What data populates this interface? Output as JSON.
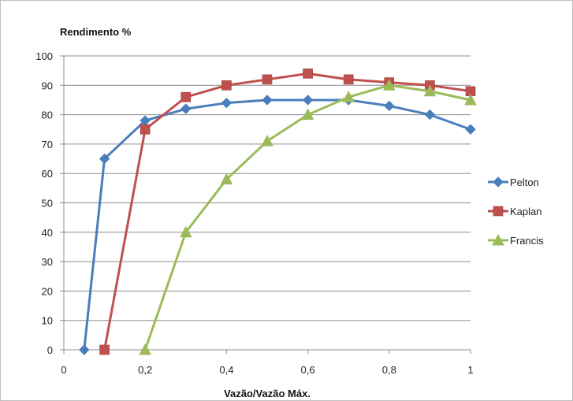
{
  "chart_data": {
    "type": "line",
    "ylabel": "Rendimento %",
    "xlabel": "Vazão/Vazão Máx.",
    "xlim": [
      0,
      1
    ],
    "ylim": [
      0,
      100
    ],
    "x_ticks": [
      {
        "value": 0,
        "label": "0"
      },
      {
        "value": 0.2,
        "label": "0,2"
      },
      {
        "value": 0.4,
        "label": "0,4"
      },
      {
        "value": 0.6,
        "label": "0,6"
      },
      {
        "value": 0.8,
        "label": "0,8"
      },
      {
        "value": 1,
        "label": "1"
      }
    ],
    "y_ticks": [
      {
        "value": 0,
        "label": "0"
      },
      {
        "value": 10,
        "label": "10"
      },
      {
        "value": 20,
        "label": "20"
      },
      {
        "value": 30,
        "label": "30"
      },
      {
        "value": 40,
        "label": "40"
      },
      {
        "value": 50,
        "label": "50"
      },
      {
        "value": 60,
        "label": "60"
      },
      {
        "value": 70,
        "label": "70"
      },
      {
        "value": 80,
        "label": "80"
      },
      {
        "value": 90,
        "label": "90"
      },
      {
        "value": 100,
        "label": "100"
      }
    ],
    "grid": "horizontal",
    "legend_position": "right",
    "series": [
      {
        "name": "Pelton",
        "color": "#4a7ebb",
        "marker": "diamond",
        "x": [
          0.05,
          0.1,
          0.2,
          0.3,
          0.4,
          0.5,
          0.6,
          0.7,
          0.8,
          0.9,
          1.0
        ],
        "y": [
          0,
          65,
          78,
          82,
          84,
          85,
          85,
          85,
          83,
          80,
          75
        ]
      },
      {
        "name": "Kaplan",
        "color": "#c0504d",
        "marker": "square",
        "x": [
          0.1,
          0.2,
          0.3,
          0.4,
          0.5,
          0.6,
          0.7,
          0.8,
          0.9,
          1.0
        ],
        "y": [
          0,
          75,
          86,
          90,
          92,
          94,
          92,
          91,
          90,
          88
        ]
      },
      {
        "name": "Francis",
        "color": "#9bbb59",
        "marker": "triangle",
        "x": [
          0.2,
          0.3,
          0.4,
          0.5,
          0.6,
          0.7,
          0.8,
          0.9,
          1.0
        ],
        "y": [
          0,
          40,
          58,
          71,
          80,
          86,
          90,
          88,
          85
        ]
      }
    ]
  }
}
